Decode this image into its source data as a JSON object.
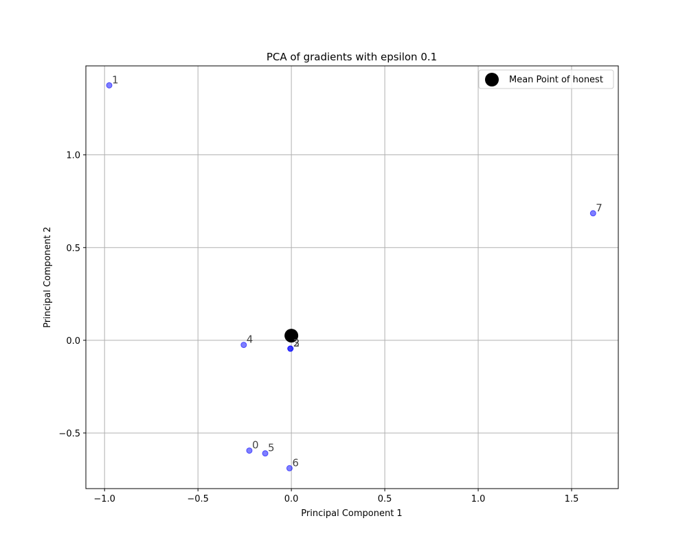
{
  "chart_data": {
    "type": "scatter",
    "title": "PCA of gradients with epsilon 0.1",
    "xlabel": "Principal Component 1",
    "ylabel": "Principal Component 2",
    "xlim": [
      -1.1,
      1.75
    ],
    "ylim": [
      -0.8,
      1.48
    ],
    "x_ticks": [
      -1.0,
      -0.5,
      0.0,
      0.5,
      1.0,
      1.5
    ],
    "x_tick_labels": [
      "−1.0",
      "−0.5",
      "0.0",
      "0.5",
      "1.0",
      "1.5"
    ],
    "y_ticks": [
      -0.5,
      0.0,
      0.5,
      1.0
    ],
    "y_tick_labels": [
      "−0.5",
      "0.0",
      "0.5",
      "1.0"
    ],
    "grid": true,
    "legend_position": "top-right",
    "points": [
      {
        "label": "0",
        "x": -0.225,
        "y": -0.595
      },
      {
        "label": "1",
        "x": -0.975,
        "y": 1.375
      },
      {
        "label": "2",
        "x": -0.005,
        "y": -0.045
      },
      {
        "label": "3",
        "x": -0.005,
        "y": -0.045
      },
      {
        "label": "4",
        "x": -0.255,
        "y": -0.025
      },
      {
        "label": "5",
        "x": -0.14,
        "y": -0.61
      },
      {
        "label": "6",
        "x": -0.01,
        "y": -0.69
      },
      {
        "label": "7",
        "x": 1.615,
        "y": 0.685
      }
    ],
    "mean_point": {
      "name": "Mean Point of honest",
      "x": 0.0,
      "y": 0.025
    },
    "colors": {
      "points": "#0000ff",
      "mean": "#000000",
      "grid": "#b0b0b0",
      "point_label": "#444444"
    }
  }
}
